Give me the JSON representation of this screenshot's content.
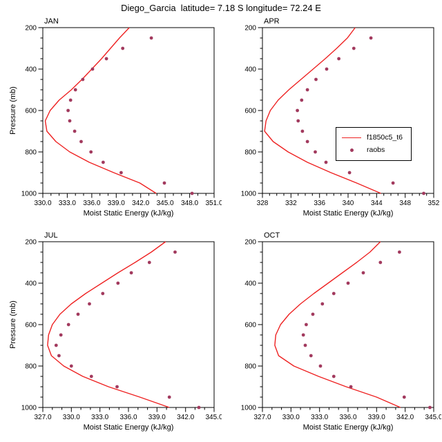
{
  "title": "Diego_Garcia  latitude= 7.18 S longitude= 72.24 E",
  "chart_data": {
    "type": "line",
    "legend": {
      "position": "inside-APR-panel",
      "entries": [
        {
          "type": "line",
          "label": "f1850c5_t6"
        },
        {
          "type": "marker",
          "label": "raobs"
        }
      ]
    },
    "colors": {
      "model": "#ee2222",
      "raobs": "#a23a5e",
      "axis": "#000000"
    },
    "panels": [
      {
        "month": "JAN",
        "xlabel": "Moist Static Energy (kJ/kg)",
        "ylabel": "Pressure (mb)",
        "xlim": [
          330,
          351
        ],
        "xticks": [
          330,
          333,
          336,
          339,
          342,
          345,
          348,
          351
        ],
        "xtick_labels": [
          "330.0",
          "333.0",
          "336.0",
          "339.0",
          "342.0",
          "345.0",
          "348.0",
          "351.0"
        ],
        "x_minor_step": 1,
        "ylim": [
          200,
          1000
        ],
        "yticks": [
          200,
          400,
          600,
          800,
          1000
        ],
        "ytick_labels": [
          "200",
          "400",
          "600",
          "800",
          "1000"
        ],
        "y_minor_step": 50,
        "model": {
          "pressure": [
            200,
            250,
            300,
            350,
            400,
            450,
            500,
            550,
            600,
            650,
            700,
            750,
            800,
            850,
            900,
            950,
            1000
          ],
          "mse": [
            340.6,
            339.4,
            338.3,
            337.2,
            336.0,
            334.8,
            333.5,
            332.0,
            330.9,
            330.3,
            330.5,
            331.6,
            333.3,
            335.7,
            338.7,
            341.9,
            343.9
          ]
        },
        "raobs": {
          "pressure": [
            250,
            300,
            350,
            400,
            450,
            500,
            550,
            600,
            650,
            700,
            750,
            800,
            850,
            900,
            950,
            1000
          ],
          "mse": [
            343.3,
            339.8,
            337.8,
            336.1,
            334.9,
            334.0,
            333.4,
            333.1,
            333.3,
            333.9,
            334.7,
            335.9,
            337.4,
            339.6,
            344.9,
            348.3
          ]
        }
      },
      {
        "month": "APR",
        "xlabel": "Moist Static Energy (kJ/kg)",
        "xlim": [
          328,
          352
        ],
        "xticks": [
          328,
          332,
          336,
          340,
          344,
          348,
          352
        ],
        "xtick_labels": [
          "328",
          "332",
          "336",
          "340",
          "344",
          "348",
          "352"
        ],
        "x_minor_step": 1,
        "ylim": [
          200,
          1000
        ],
        "yticks": [
          200,
          400,
          600,
          800,
          1000
        ],
        "ytick_labels": [
          "200",
          "400",
          "600",
          "800",
          "1000"
        ],
        "y_minor_step": 50,
        "model": {
          "pressure": [
            200,
            250,
            300,
            350,
            400,
            450,
            500,
            550,
            600,
            650,
            700,
            750,
            800,
            850,
            900,
            950,
            1000
          ],
          "mse": [
            341.0,
            339.9,
            338.4,
            336.8,
            335.1,
            333.4,
            331.7,
            330.2,
            329.1,
            328.5,
            328.3,
            329.5,
            331.6,
            334.3,
            337.6,
            341.2,
            344.6
          ]
        },
        "raobs": {
          "pressure": [
            250,
            300,
            350,
            400,
            450,
            500,
            550,
            600,
            650,
            700,
            750,
            800,
            850,
            900,
            950,
            1000
          ],
          "mse": [
            343.2,
            340.8,
            338.7,
            337.0,
            335.5,
            334.3,
            333.5,
            332.9,
            333.0,
            333.6,
            334.3,
            335.4,
            336.9,
            340.2,
            346.3,
            350.6
          ]
        }
      },
      {
        "month": "JUL",
        "xlabel": "Moist Static Energy (kJ/kg)",
        "ylabel": "Pressure (mb)",
        "xlim": [
          327,
          345
        ],
        "xticks": [
          327,
          330,
          333,
          336,
          339,
          342,
          345
        ],
        "xtick_labels": [
          "327.0",
          "330.0",
          "333.0",
          "336.0",
          "339.0",
          "342.0",
          "345.0"
        ],
        "x_minor_step": 1,
        "ylim": [
          200,
          1000
        ],
        "yticks": [
          200,
          400,
          600,
          800,
          1000
        ],
        "ytick_labels": [
          "200",
          "400",
          "600",
          "800",
          "1000"
        ],
        "y_minor_step": 50,
        "model": {
          "pressure": [
            200,
            250,
            300,
            350,
            400,
            450,
            500,
            550,
            600,
            650,
            700,
            750,
            800,
            850,
            900,
            950,
            1000
          ],
          "mse": [
            339.9,
            338.4,
            336.7,
            334.9,
            333.2,
            331.5,
            330.0,
            328.8,
            328.0,
            327.6,
            327.5,
            327.9,
            329.2,
            331.2,
            333.9,
            337.2,
            340.3
          ]
        },
        "raobs": {
          "pressure": [
            250,
            300,
            350,
            400,
            450,
            500,
            550,
            600,
            650,
            700,
            750,
            800,
            850,
            900,
            950,
            1000
          ],
          "mse": [
            340.9,
            338.2,
            336.3,
            334.9,
            333.3,
            331.9,
            330.7,
            329.7,
            328.9,
            328.4,
            328.7,
            330.0,
            332.1,
            334.8,
            340.3,
            343.4
          ]
        }
      },
      {
        "month": "OCT",
        "xlabel": "Moist Static Energy (kJ/kg)",
        "xlim": [
          327,
          345
        ],
        "xticks": [
          327,
          330,
          333,
          336,
          339,
          342,
          345
        ],
        "xtick_labels": [
          "327.0",
          "330.0",
          "333.0",
          "336.0",
          "339.0",
          "342.0",
          "345.0"
        ],
        "x_minor_step": 1,
        "ylim": [
          200,
          1000
        ],
        "yticks": [
          200,
          400,
          600,
          800,
          1000
        ],
        "ytick_labels": [
          "200",
          "400",
          "600",
          "800",
          "1000"
        ],
        "y_minor_step": 50,
        "model": {
          "pressure": [
            200,
            250,
            300,
            350,
            400,
            450,
            500,
            550,
            600,
            650,
            700,
            750,
            800,
            850,
            900,
            950,
            1000
          ],
          "mse": [
            339.4,
            338.3,
            336.9,
            335.4,
            333.9,
            332.4,
            331.0,
            329.8,
            328.9,
            328.4,
            328.3,
            328.7,
            330.3,
            332.9,
            335.8,
            339.0,
            341.5
          ]
        },
        "raobs": {
          "pressure": [
            250,
            300,
            350,
            400,
            450,
            500,
            550,
            600,
            650,
            700,
            750,
            800,
            850,
            900,
            950,
            1000
          ],
          "mse": [
            341.4,
            339.4,
            337.6,
            336.0,
            334.5,
            333.3,
            332.3,
            331.6,
            331.3,
            331.5,
            332.1,
            333.1,
            334.5,
            336.3,
            341.9,
            344.6
          ]
        }
      }
    ]
  }
}
